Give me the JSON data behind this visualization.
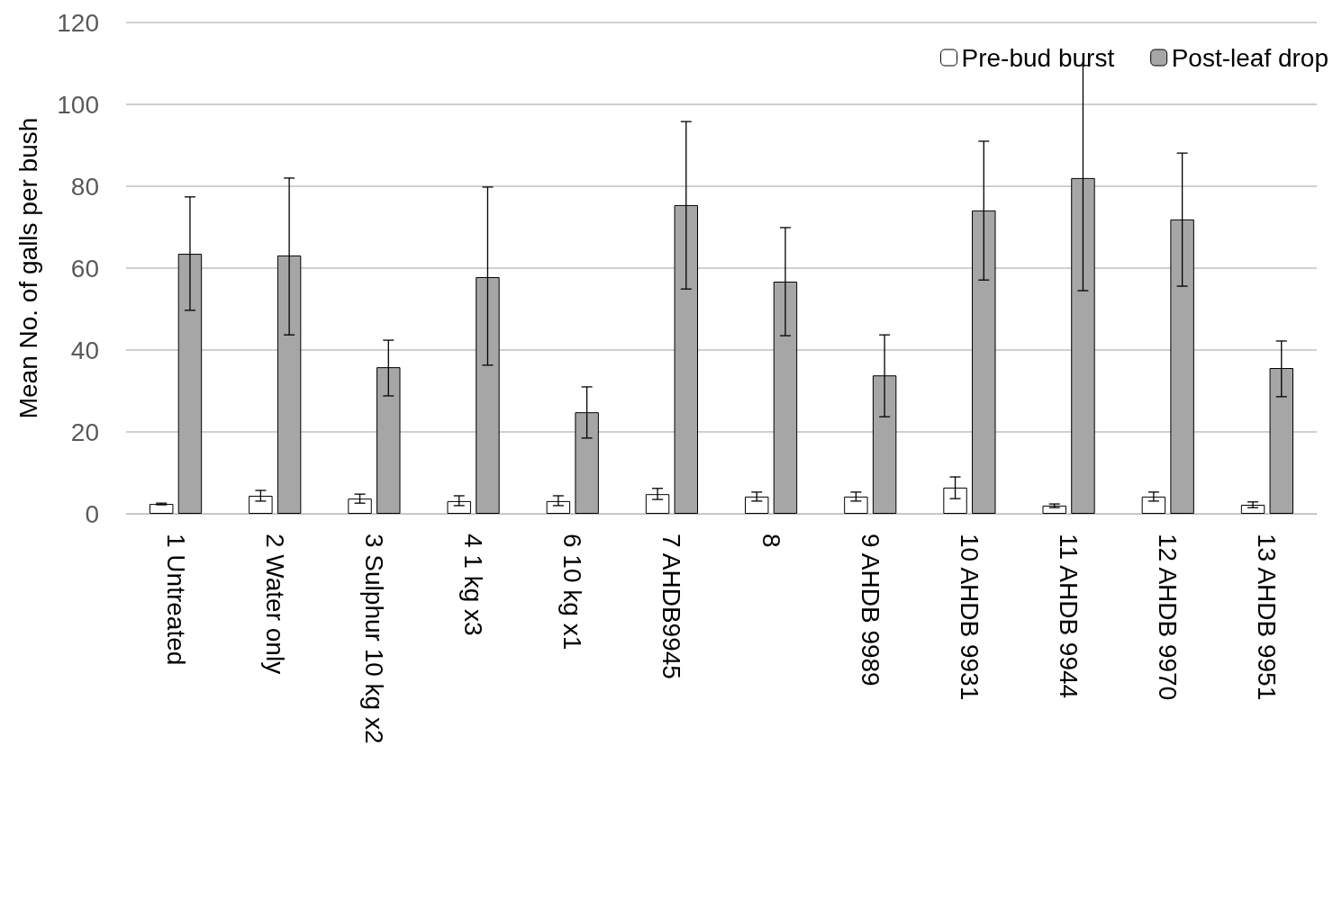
{
  "chart_data": {
    "type": "bar",
    "ylabel": "Mean No. of galls per bush",
    "categories": [
      "1 Untreated",
      "2 Water only",
      "3 Sulphur 10 kg x2",
      "4 1 kg x3",
      "6 10 kg x1",
      "7 AHDB9945",
      "8",
      "9 AHDB 9989",
      "10 AHDB 9931",
      "11 AHDB 9944",
      "12 AHDB 9970",
      "13 AHDB 9951"
    ],
    "series": [
      {
        "name": "Pre-bud burst",
        "color": "#ffffff",
        "values": [
          2.4,
          4.4,
          3.7,
          3.1,
          3.1,
          4.8,
          4.2,
          4.2,
          6.4,
          2.0,
          4.2,
          2.2
        ],
        "errors": [
          [
            2.2,
            2.6
          ],
          [
            3.1,
            5.7
          ],
          [
            2.6,
            4.8
          ],
          [
            2.0,
            4.4
          ],
          [
            2.0,
            4.4
          ],
          [
            3.5,
            6.2
          ],
          [
            3.1,
            5.3
          ],
          [
            3.1,
            5.3
          ],
          [
            3.7,
            9.0
          ],
          [
            1.5,
            2.4
          ],
          [
            3.1,
            5.3
          ],
          [
            1.5,
            2.9
          ]
        ]
      },
      {
        "name": "Post-leaf drop",
        "color": "#a6a6a6",
        "values": [
          63.5,
          63.1,
          35.8,
          57.8,
          24.8,
          75.4,
          56.7,
          33.8,
          74.1,
          82.0,
          71.9,
          35.6
        ],
        "errors": [
          [
            49.7,
            77.4
          ],
          [
            43.7,
            82.0
          ],
          [
            28.8,
            42.4
          ],
          [
            36.3,
            79.8
          ],
          [
            18.5,
            31.0
          ],
          [
            54.9,
            95.8
          ],
          [
            43.5,
            69.9
          ],
          [
            23.7,
            43.7
          ],
          [
            57.1,
            91.0
          ],
          [
            54.5,
            109.5
          ],
          [
            55.6,
            88.1
          ],
          [
            28.6,
            42.2
          ]
        ]
      }
    ],
    "ylim": [
      0,
      120
    ],
    "yticks": [
      0,
      20,
      40,
      60,
      80,
      100,
      120
    ],
    "grid": "y",
    "legend": "top right"
  }
}
